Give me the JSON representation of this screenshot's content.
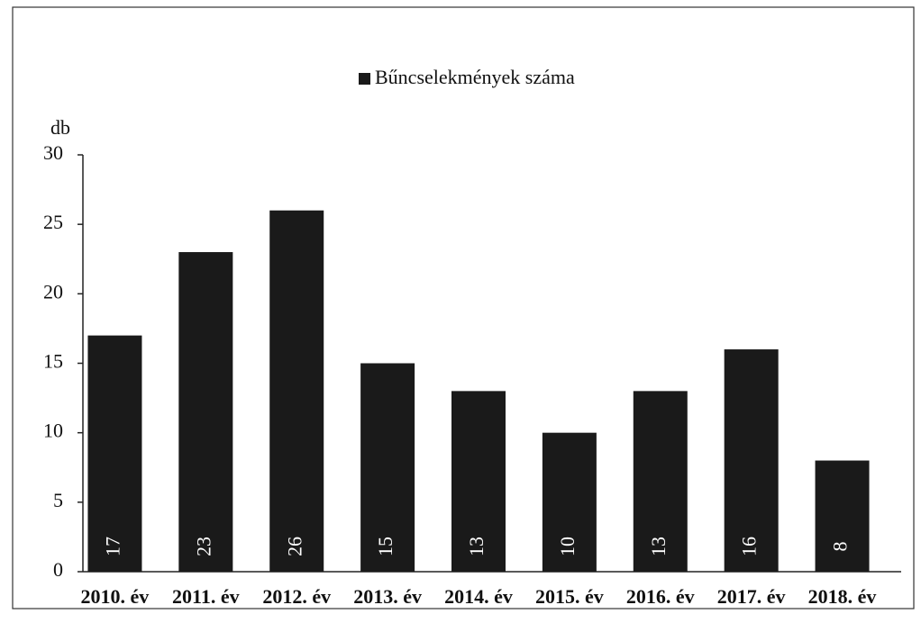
{
  "chart_data": {
    "type": "bar",
    "y_label": "db",
    "categories": [
      "2010. év",
      "2011. év",
      "2012. év",
      "2013. év",
      "2014. év",
      "2015. év",
      "2016. év",
      "2017. év",
      "2018. év"
    ],
    "series": [
      {
        "name": "Bűncselekmények száma",
        "color": "#1a1a1a",
        "values": [
          17,
          23,
          26,
          15,
          13,
          10,
          13,
          16,
          8
        ]
      }
    ],
    "ylim": [
      0,
      30
    ],
    "yticks": [
      0,
      5,
      10,
      15,
      20,
      25,
      30
    ],
    "legend": "top",
    "data_labels": true
  }
}
